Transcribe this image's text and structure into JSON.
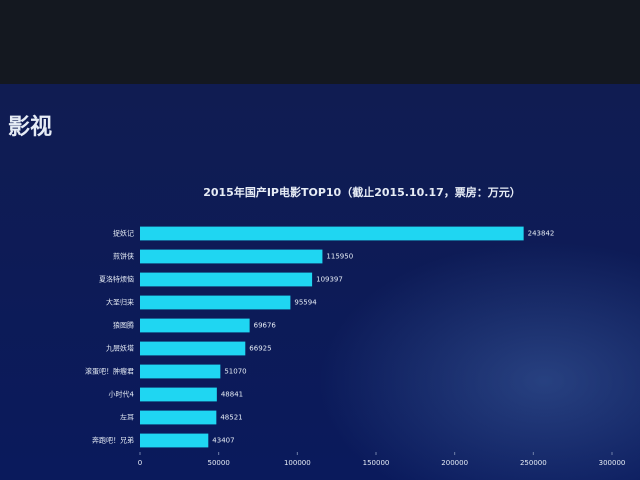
{
  "header": {
    "title": "影视"
  },
  "chart_data": {
    "type": "bar",
    "orientation": "horizontal",
    "title": "2015年国产IP电影TOP10（截止2015.10.17，票房：万元）",
    "categories": [
      "捉妖记",
      "煎饼侠",
      "夏洛特烦恼",
      "大圣归来",
      "狼图腾",
      "九层妖塔",
      "滚蛋吧！肿瘤君",
      "小时代4",
      "左耳",
      "奔跑吧！兄弟"
    ],
    "values": [
      243842,
      115950,
      109397,
      95594,
      69676,
      66925,
      51070,
      48841,
      48521,
      43407
    ],
    "color": "#1fd6f2",
    "xlim": [
      0,
      300000
    ],
    "xticks": [
      0,
      50000,
      100000,
      150000,
      200000,
      250000,
      300000
    ],
    "grid": false
  }
}
